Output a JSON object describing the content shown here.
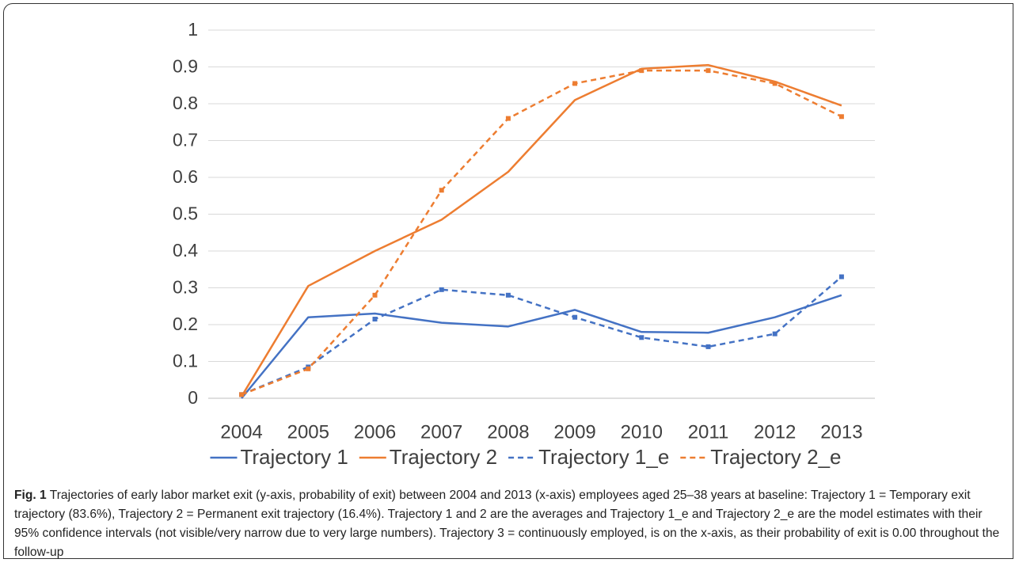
{
  "chart_data": {
    "type": "line",
    "categories": [
      "2004",
      "2005",
      "2006",
      "2007",
      "2008",
      "2009",
      "2010",
      "2011",
      "2012",
      "2013"
    ],
    "series": [
      {
        "name": "Trajectory 1",
        "color": "#4472c4",
        "dashed": false,
        "markers": false,
        "values": [
          0.0,
          0.22,
          0.23,
          0.205,
          0.195,
          0.24,
          0.18,
          0.178,
          0.22,
          0.28
        ]
      },
      {
        "name": "Trajectory 2",
        "color": "#ed7d31",
        "dashed": false,
        "markers": false,
        "values": [
          0.005,
          0.305,
          0.4,
          0.485,
          0.615,
          0.81,
          0.895,
          0.905,
          0.86,
          0.795
        ]
      },
      {
        "name": "Trajectory 1_e",
        "color": "#4472c4",
        "dashed": true,
        "markers": true,
        "values": [
          0.01,
          0.085,
          0.215,
          0.295,
          0.28,
          0.22,
          0.165,
          0.14,
          0.175,
          0.33
        ]
      },
      {
        "name": "Trajectory 2_e",
        "color": "#ed7d31",
        "dashed": true,
        "markers": true,
        "values": [
          0.01,
          0.08,
          0.28,
          0.565,
          0.76,
          0.855,
          0.89,
          0.89,
          0.855,
          0.765
        ]
      }
    ],
    "ylim": [
      0,
      1
    ],
    "yticks": [
      0,
      0.1,
      0.2,
      0.3,
      0.4,
      0.5,
      0.6,
      0.7,
      0.8,
      0.9,
      1
    ],
    "grid": true,
    "legend": "bottom",
    "caption": {
      "label": "Fig. 1",
      "text": "Trajectories of early labor market exit (y-axis, probability of exit) between 2004 and 2013 (x-axis) employees aged 25–38 years at baseline: Trajectory 1 = Temporary exit trajectory (83.6%), Trajectory 2 = Permanent exit trajectory (16.4%). Trajectory 1 and 2 are the averages and Trajectory 1_e and Trajectory 2_e are the model estimates with their 95% confidence intervals (not visible/very narrow due to very large numbers). Trajectory 3 = continuously employed, is on the x-axis, as their probability of exit is 0.00 throughout the follow-up"
    }
  }
}
